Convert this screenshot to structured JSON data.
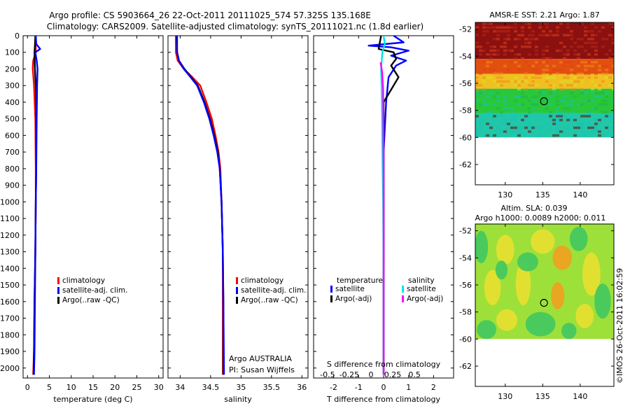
{
  "figure": {
    "title_line1": "Argo profile: CS 5903664_26 22-Oct-2011 20111025_574 57.325S 135.168E",
    "title_line2": "Climatology: CARS2009. Satellite-adjusted climatology: synTS_20111021.nc (1.8d earlier)",
    "credit": "©IMOS 26-Oct-2011 16:02:59",
    "source_line1": "Argo AUSTRALIA",
    "source_line2": "PI: Susan Wijffels"
  },
  "colors": {
    "climatology": "#ff0000",
    "satellite": "#0000ff",
    "argo": "#000000",
    "sal_satellite": "#00e5e5",
    "sal_argo": "#ff00ff"
  },
  "legends": {
    "profile": [
      "climatology",
      "satellite-adj. clim.",
      "Argo(..raw -QC)"
    ],
    "diff_temperature_title": "temperature",
    "diff_salinity_title": "salinity",
    "diff_temperature_items": [
      "satellite",
      "Argo(-adj)"
    ],
    "diff_salinity_items": [
      "satellite",
      "Argo(-adj)"
    ]
  },
  "chart_data": [
    {
      "type": "line",
      "name": "temperature profile",
      "xlabel": "temperature (deg C)",
      "ylabel": "",
      "xlim": [
        -1,
        31
      ],
      "ylim": [
        2060,
        0
      ],
      "xticks": [
        0,
        5,
        10,
        15,
        20,
        25,
        30
      ],
      "xticklabels": [
        "0",
        "5",
        "10",
        "15",
        "20",
        "25",
        "30"
      ],
      "yticks": [
        0,
        100,
        200,
        300,
        400,
        500,
        600,
        700,
        800,
        900,
        1000,
        1100,
        1200,
        1300,
        1400,
        1500,
        1600,
        1700,
        1800,
        1900,
        2000
      ],
      "yticklabels": [
        "0",
        "100",
        "200",
        "300",
        "400",
        "500",
        "600",
        "700",
        "800",
        "900",
        "1000",
        "1100",
        "1200",
        "1300",
        "1400",
        "1500",
        "1600",
        "1700",
        "1800",
        "1900",
        "2000"
      ],
      "series": [
        {
          "name": "climatology",
          "color": "#ff0000",
          "x": [
            1.9,
            1.9,
            1.3,
            1.2,
            1.5,
            1.8,
            1.9,
            1.9,
            1.8,
            1.6,
            1.5,
            1.3
          ],
          "y": [
            0,
            100,
            150,
            200,
            300,
            500,
            800,
            1000,
            1300,
            1600,
            1900,
            2040
          ]
        },
        {
          "name": "Argo(..raw -QC)",
          "color": "#000000",
          "x": [
            1.8,
            1.7,
            1.6,
            1.7,
            1.9,
            2.0,
            2.0,
            1.9,
            1.8,
            1.6,
            1.5,
            1.4
          ],
          "y": [
            0,
            60,
            100,
            200,
            300,
            500,
            800,
            1000,
            1300,
            1600,
            1900,
            2040
          ]
        },
        {
          "name": "satellite-adj. clim.",
          "color": "#0000ff",
          "x": [
            1.9,
            2.0,
            2.9,
            1.8,
            2.1,
            2.3,
            2.2,
            2.1,
            2.0,
            1.9,
            1.8,
            1.7,
            1.6,
            1.5
          ],
          "y": [
            0,
            50,
            80,
            100,
            150,
            200,
            300,
            500,
            800,
            1000,
            1300,
            1600,
            1900,
            2040
          ]
        }
      ]
    },
    {
      "type": "line",
      "name": "salinity profile",
      "xlabel": "salinity",
      "ylabel": "",
      "xlim": [
        33.8,
        36.1
      ],
      "ylim": [
        2060,
        0
      ],
      "xticks": [
        34,
        34.5,
        35,
        35.5,
        36
      ],
      "xticklabels": [
        "34",
        "34.5",
        "35",
        "35.5",
        "36"
      ],
      "yticks": [
        0,
        100,
        200,
        300,
        400,
        500,
        600,
        700,
        800,
        900,
        1000,
        1100,
        1200,
        1300,
        1400,
        1500,
        1600,
        1700,
        1800,
        1900,
        2000
      ],
      "yticklabels": [],
      "series": [
        {
          "name": "climatology",
          "color": "#ff0000",
          "x": [
            33.93,
            33.93,
            33.96,
            34.06,
            34.2,
            34.33,
            34.43,
            34.52,
            34.58,
            34.63,
            34.66,
            34.68,
            34.7,
            34.7,
            34.7
          ],
          "y": [
            0,
            100,
            150,
            200,
            250,
            300,
            400,
            500,
            600,
            700,
            800,
            1000,
            1300,
            1600,
            2040
          ]
        },
        {
          "name": "Argo(..raw -QC)",
          "color": "#000000",
          "x": [
            33.94,
            33.95,
            33.98,
            34.07,
            34.18,
            34.29,
            34.4,
            34.49,
            34.56,
            34.62,
            34.65,
            34.68,
            34.7,
            34.71,
            34.71
          ],
          "y": [
            0,
            100,
            150,
            200,
            250,
            300,
            400,
            500,
            600,
            700,
            800,
            1000,
            1300,
            1600,
            2040
          ]
        },
        {
          "name": "satellite-adj. clim.",
          "color": "#0000ff",
          "x": [
            33.95,
            33.95,
            33.98,
            34.06,
            34.17,
            34.28,
            34.39,
            34.48,
            34.55,
            34.61,
            34.65,
            34.68,
            34.7,
            34.71,
            34.72
          ],
          "y": [
            0,
            100,
            150,
            200,
            250,
            300,
            400,
            500,
            600,
            700,
            800,
            1000,
            1300,
            1600,
            2040
          ]
        }
      ]
    },
    {
      "type": "line",
      "name": "difference from climatology",
      "xlabel": "T difference from climatology",
      "xlabel_top": "S difference from climatology",
      "ylabel": "",
      "xlim": [
        -2.8,
        2.8
      ],
      "ylim": [
        2060,
        0
      ],
      "xticks": [
        -2,
        -1,
        0,
        1,
        2
      ],
      "xticklabels": [
        "-2",
        "-1",
        "0",
        "1",
        "2"
      ],
      "sticks": [
        -0.5,
        -0.25,
        0,
        0.25,
        0.5
      ],
      "sticklabels": [
        "-0.5",
        "-0.25",
        "0",
        "0.25",
        "0.5"
      ],
      "yticks": [
        0,
        100,
        200,
        300,
        400,
        500,
        600,
        700,
        800,
        900,
        1000,
        1100,
        1200,
        1300,
        1400,
        1500,
        1600,
        1700,
        1800,
        1900,
        2000
      ],
      "yticklabels": [],
      "series": [
        {
          "name": "temperature satellite",
          "color": "#0000ff",
          "x": [
            0.4,
            0.8,
            -0.6,
            0.3,
            1.0,
            0.3,
            0.9,
            0.5,
            0.2,
            0.1,
            0.0,
            0.0,
            0.0
          ],
          "y": [
            0,
            40,
            60,
            70,
            90,
            120,
            150,
            180,
            250,
            400,
            700,
            1200,
            2040
          ]
        },
        {
          "name": "temperature Argo(-adj)",
          "color": "#000000",
          "x": [
            -0.1,
            -0.2,
            0.4,
            0.5,
            0.3,
            0.6,
            0.0,
            0.0,
            0.0
          ],
          "y": [
            0,
            80,
            100,
            140,
            180,
            250,
            400,
            800,
            2040
          ]
        },
        {
          "name": "salinity satellite",
          "color": "#00e5e5",
          "x": [
            0.0,
            0.05,
            -0.05,
            -0.1,
            -0.08,
            -0.06,
            -0.04,
            -0.02,
            0.0,
            0.0
          ],
          "y": [
            0,
            50,
            100,
            200,
            300,
            500,
            800,
            1000,
            1500,
            2040
          ]
        },
        {
          "name": "salinity Argo(-adj)",
          "color": "#ff00ff",
          "x": [
            -0.12,
            -0.06,
            -0.02,
            0.0,
            0.0
          ],
          "y": [
            160,
            220,
            320,
            800,
            2040
          ]
        }
      ]
    },
    {
      "type": "heatmap",
      "name": "AMSR-E SST map",
      "title": "AMSR-E SST: 2.21 Argo: 1.87",
      "xlim": [
        126,
        144.5
      ],
      "ylim": [
        -63.5,
        -51.5
      ],
      "xticks": [
        130,
        135,
        140
      ],
      "xticklabels": [
        "130",
        "135",
        "140"
      ],
      "yticks": [
        -52,
        -54,
        -56,
        -58,
        -60,
        -62
      ],
      "yticklabels": [
        "-52",
        "-54",
        "-56",
        "-58",
        "-60",
        "-62"
      ],
      "bands": [
        {
          "lat_from": -51.5,
          "lat_to": -54.2,
          "color": "#8b1010"
        },
        {
          "lat_from": -54.2,
          "lat_to": -55.3,
          "color": "#e25010"
        },
        {
          "lat_from": -55.3,
          "lat_to": -56.4,
          "color": "#f0c020"
        },
        {
          "lat_from": -56.4,
          "lat_to": -58.2,
          "color": "#28c83a"
        },
        {
          "lat_from": -58.2,
          "lat_to": -60.0,
          "color": "#20c8a8"
        }
      ],
      "argo_location": {
        "lon": 135.168,
        "lat": -57.325
      }
    },
    {
      "type": "heatmap",
      "name": "Altimeter SLA map",
      "title_line1": "Altim. SLA: 0.039",
      "title_line2": "Argo h1000: 0.0089 h2000: 0.011",
      "xlim": [
        126,
        144.5
      ],
      "ylim": [
        -63.5,
        -51.5
      ],
      "xticks": [
        130,
        135,
        140
      ],
      "xticklabels": [
        "130",
        "135",
        "140"
      ],
      "yticks": [
        -52,
        -54,
        -56,
        -58,
        -60,
        -62
      ],
      "yticklabels": [
        "-52",
        "-54",
        "-56",
        "-58",
        "-60",
        "-62"
      ],
      "field": {
        "lat_from": -51.5,
        "lat_to": -60.0,
        "base_color": "#9ee03a",
        "low_color": "#40c860",
        "high_color": "#e8e030",
        "peak_color": "#f0a020"
      },
      "argo_location": {
        "lon": 135.168,
        "lat": -57.325
      }
    }
  ]
}
